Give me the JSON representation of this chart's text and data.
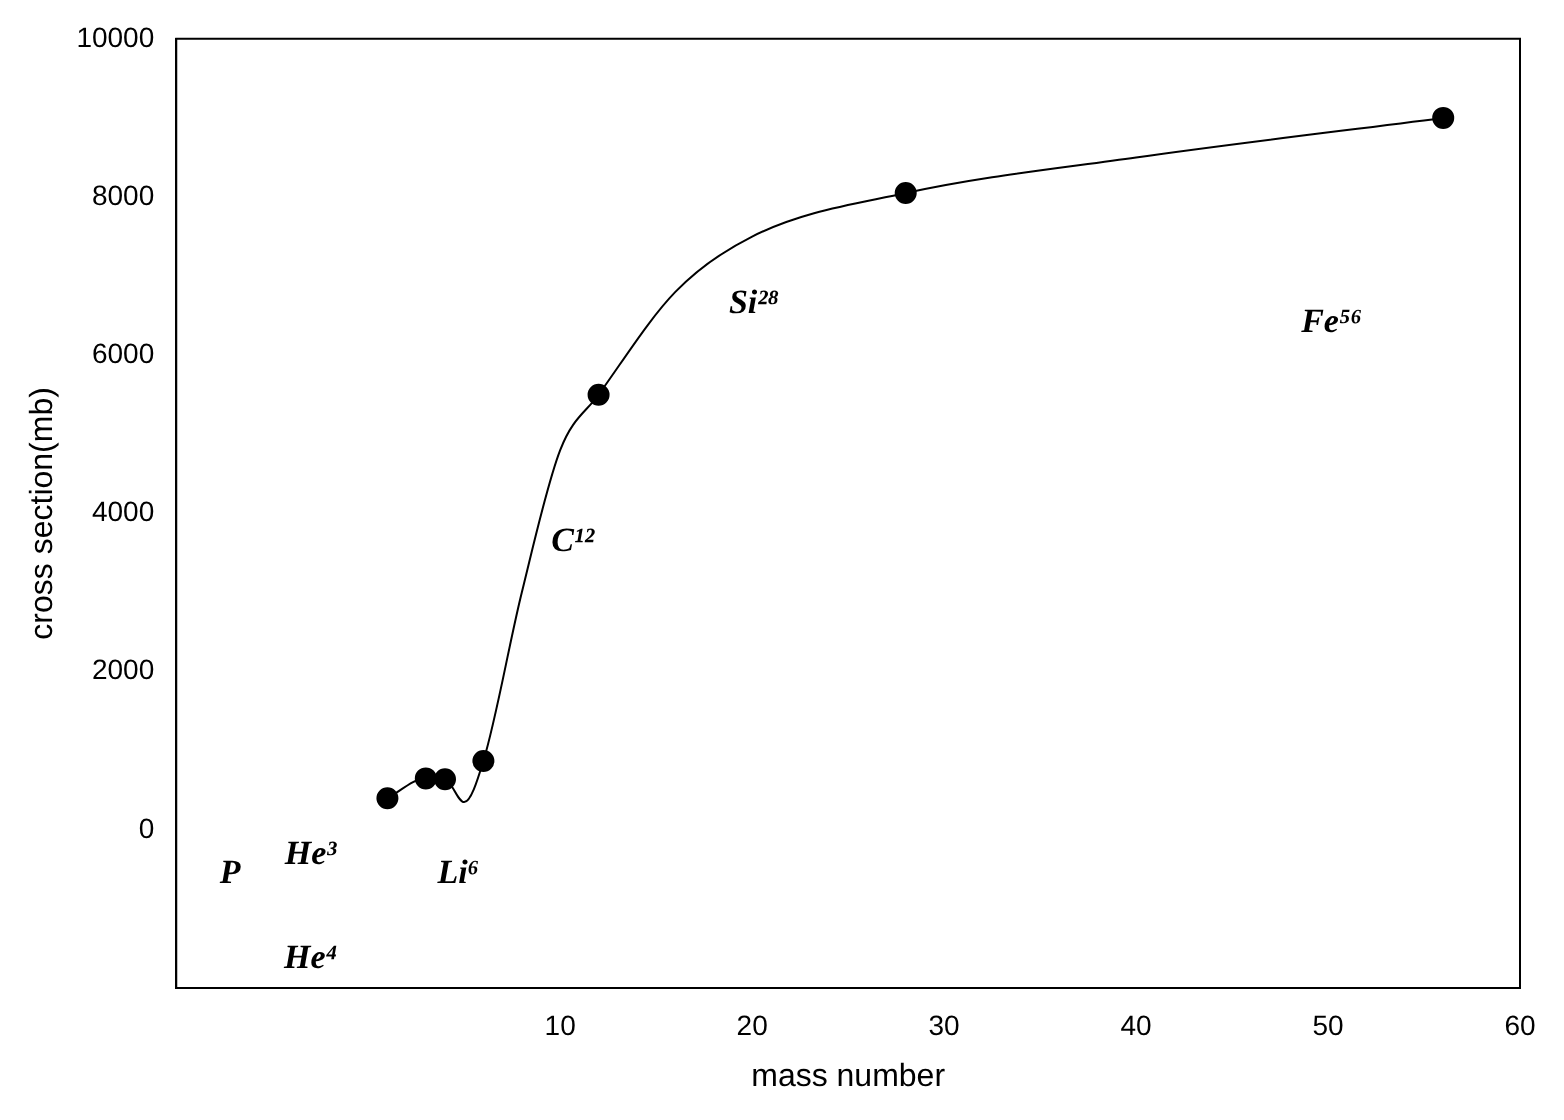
{
  "chart_data": {
    "type": "scatter",
    "xlabel": "mass number",
    "ylabel": "cross section(mb)",
    "xlim": [
      -10,
      60
    ],
    "xticks": [
      10,
      20,
      30,
      40,
      50,
      60
    ],
    "ylim": [
      -2000,
      10000
    ],
    "yticks": [
      0,
      2000,
      4000,
      6000,
      8000,
      10000
    ],
    "grid": false,
    "legend": false,
    "series": [
      {
        "type": "scatter",
        "color": "#000000",
        "marker": "circle",
        "x": [
          1,
          3,
          4,
          6,
          12,
          28,
          56
        ],
        "values": [
          400,
          650,
          640,
          870,
          5500,
          8050,
          9000
        ]
      },
      {
        "type": "line",
        "color": "#000000",
        "marker": "none",
        "line_style": "solid",
        "x": [
          1,
          3,
          4,
          5,
          6,
          8,
          10,
          12,
          16,
          20,
          28,
          40,
          56
        ],
        "values": [
          400,
          650,
          640,
          350,
          870,
          3000,
          4800,
          5500,
          6800,
          7500,
          8050,
          8500,
          9000
        ]
      }
    ],
    "annotations": [
      "P",
      "He³",
      "He⁴",
      "Li⁶",
      "C¹²",
      "Si²⁸",
      "Fe⁵⁶"
    ]
  }
}
